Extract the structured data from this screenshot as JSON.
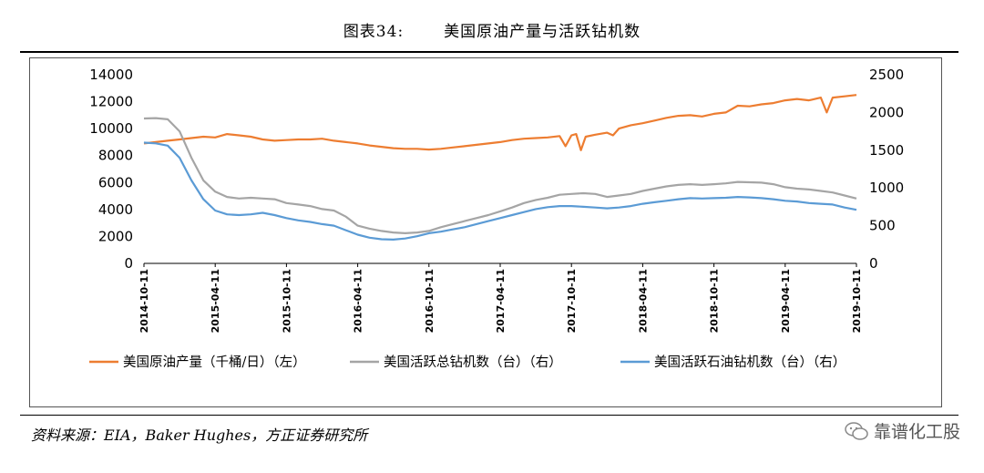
{
  "header": {
    "figure_no": "图表34:",
    "title": "美国原油产量与活跃钻机数"
  },
  "footer": {
    "source": "资料来源：EIA，Baker Hughes，方正证券研究所",
    "watermark": "靠谱化工股"
  },
  "chart_data": {
    "type": "line",
    "title": "美国原油产量与活跃钻机数",
    "x_tick_labels": [
      "2014-10-11",
      "2015-04-11",
      "2015-10-11",
      "2016-04-11",
      "2016-10-11",
      "2017-04-11",
      "2017-10-11",
      "2018-04-11",
      "2018-10-11",
      "2019-04-11",
      "2019-10-11"
    ],
    "y_left": {
      "ticks": [
        "0",
        "2000",
        "4000",
        "6000",
        "8000",
        "10000",
        "12000",
        "14000"
      ],
      "ylim": [
        0,
        14000
      ]
    },
    "y_right": {
      "ticks": [
        "0",
        "500",
        "1000",
        "1500",
        "2000",
        "2500"
      ],
      "ylim": [
        0,
        2500
      ]
    },
    "x_range_months": [
      0,
      60
    ],
    "series": [
      {
        "name": "美国原油产量（千桶/日）（左）",
        "axis": "left",
        "color": "#ED7D31",
        "points": [
          [
            0,
            8900
          ],
          [
            1,
            9000
          ],
          [
            2,
            9100
          ],
          [
            3,
            9200
          ],
          [
            4,
            9300
          ],
          [
            5,
            9400
          ],
          [
            6,
            9350
          ],
          [
            7,
            9600
          ],
          [
            8,
            9500
          ],
          [
            9,
            9400
          ],
          [
            10,
            9200
          ],
          [
            11,
            9100
          ],
          [
            12,
            9150
          ],
          [
            13,
            9200
          ],
          [
            14,
            9200
          ],
          [
            15,
            9250
          ],
          [
            16,
            9100
          ],
          [
            17,
            9000
          ],
          [
            18,
            8900
          ],
          [
            19,
            8750
          ],
          [
            20,
            8650
          ],
          [
            21,
            8550
          ],
          [
            22,
            8500
          ],
          [
            23,
            8500
          ],
          [
            24,
            8450
          ],
          [
            25,
            8500
          ],
          [
            26,
            8600
          ],
          [
            27,
            8700
          ],
          [
            28,
            8800
          ],
          [
            29,
            8900
          ],
          [
            30,
            9000
          ],
          [
            31,
            9150
          ],
          [
            32,
            9250
          ],
          [
            33,
            9300
          ],
          [
            34,
            9350
          ],
          [
            35,
            9450
          ],
          [
            35.5,
            8700
          ],
          [
            36,
            9500
          ],
          [
            36.4,
            9600
          ],
          [
            36.8,
            8400
          ],
          [
            37.2,
            9400
          ],
          [
            38,
            9550
          ],
          [
            39,
            9700
          ],
          [
            39.5,
            9500
          ],
          [
            40,
            10000
          ],
          [
            41,
            10250
          ],
          [
            42,
            10400
          ],
          [
            43,
            10600
          ],
          [
            44,
            10800
          ],
          [
            45,
            10950
          ],
          [
            46,
            11000
          ],
          [
            47,
            10900
          ],
          [
            48,
            11100
          ],
          [
            49,
            11200
          ],
          [
            50,
            11700
          ],
          [
            51,
            11650
          ],
          [
            52,
            11800
          ],
          [
            53,
            11900
          ],
          [
            54,
            12100
          ],
          [
            55,
            12200
          ],
          [
            56,
            12100
          ],
          [
            57,
            12300
          ],
          [
            57.5,
            11200
          ],
          [
            58,
            12300
          ],
          [
            59,
            12400
          ],
          [
            60,
            12500
          ]
        ]
      },
      {
        "name": "美国活跃总钻机数（台）（右）",
        "axis": "right",
        "color": "#A5A5A5",
        "points": [
          [
            0,
            1920
          ],
          [
            1,
            1925
          ],
          [
            2,
            1910
          ],
          [
            3,
            1750
          ],
          [
            4,
            1400
          ],
          [
            5,
            1100
          ],
          [
            6,
            950
          ],
          [
            7,
            880
          ],
          [
            8,
            860
          ],
          [
            9,
            870
          ],
          [
            10,
            860
          ],
          [
            11,
            850
          ],
          [
            12,
            800
          ],
          [
            13,
            780
          ],
          [
            14,
            760
          ],
          [
            15,
            720
          ],
          [
            16,
            700
          ],
          [
            17,
            620
          ],
          [
            18,
            500
          ],
          [
            19,
            460
          ],
          [
            20,
            430
          ],
          [
            21,
            410
          ],
          [
            22,
            400
          ],
          [
            23,
            410
          ],
          [
            24,
            430
          ],
          [
            25,
            480
          ],
          [
            26,
            520
          ],
          [
            27,
            560
          ],
          [
            28,
            600
          ],
          [
            29,
            640
          ],
          [
            30,
            690
          ],
          [
            31,
            740
          ],
          [
            32,
            800
          ],
          [
            33,
            840
          ],
          [
            34,
            870
          ],
          [
            35,
            910
          ],
          [
            36,
            920
          ],
          [
            37,
            930
          ],
          [
            38,
            920
          ],
          [
            39,
            880
          ],
          [
            40,
            900
          ],
          [
            41,
            920
          ],
          [
            42,
            960
          ],
          [
            43,
            990
          ],
          [
            44,
            1020
          ],
          [
            45,
            1040
          ],
          [
            46,
            1050
          ],
          [
            47,
            1040
          ],
          [
            48,
            1050
          ],
          [
            49,
            1060
          ],
          [
            50,
            1080
          ],
          [
            51,
            1075
          ],
          [
            52,
            1070
          ],
          [
            53,
            1050
          ],
          [
            54,
            1010
          ],
          [
            55,
            990
          ],
          [
            56,
            980
          ],
          [
            57,
            960
          ],
          [
            58,
            940
          ],
          [
            59,
            900
          ],
          [
            60,
            860
          ]
        ]
      },
      {
        "name": "美国活跃石油钻机数（台）（右）",
        "axis": "right",
        "color": "#5B9BD5",
        "points": [
          [
            0,
            1600
          ],
          [
            1,
            1590
          ],
          [
            2,
            1560
          ],
          [
            3,
            1400
          ],
          [
            4,
            1100
          ],
          [
            5,
            850
          ],
          [
            6,
            700
          ],
          [
            7,
            650
          ],
          [
            8,
            640
          ],
          [
            9,
            650
          ],
          [
            10,
            670
          ],
          [
            11,
            640
          ],
          [
            12,
            600
          ],
          [
            13,
            570
          ],
          [
            14,
            550
          ],
          [
            15,
            520
          ],
          [
            16,
            500
          ],
          [
            17,
            440
          ],
          [
            18,
            380
          ],
          [
            19,
            340
          ],
          [
            20,
            320
          ],
          [
            21,
            315
          ],
          [
            22,
            330
          ],
          [
            23,
            360
          ],
          [
            24,
            400
          ],
          [
            25,
            420
          ],
          [
            26,
            450
          ],
          [
            27,
            480
          ],
          [
            28,
            520
          ],
          [
            29,
            560
          ],
          [
            30,
            600
          ],
          [
            31,
            640
          ],
          [
            32,
            680
          ],
          [
            33,
            720
          ],
          [
            34,
            745
          ],
          [
            35,
            760
          ],
          [
            36,
            760
          ],
          [
            37,
            750
          ],
          [
            38,
            740
          ],
          [
            39,
            730
          ],
          [
            40,
            740
          ],
          [
            41,
            760
          ],
          [
            42,
            790
          ],
          [
            43,
            810
          ],
          [
            44,
            830
          ],
          [
            45,
            850
          ],
          [
            46,
            865
          ],
          [
            47,
            860
          ],
          [
            48,
            865
          ],
          [
            49,
            870
          ],
          [
            50,
            880
          ],
          [
            51,
            875
          ],
          [
            52,
            865
          ],
          [
            53,
            850
          ],
          [
            54,
            830
          ],
          [
            55,
            820
          ],
          [
            56,
            800
          ],
          [
            57,
            790
          ],
          [
            58,
            780
          ],
          [
            59,
            740
          ],
          [
            60,
            710
          ]
        ]
      }
    ],
    "legend_position": "bottom"
  }
}
